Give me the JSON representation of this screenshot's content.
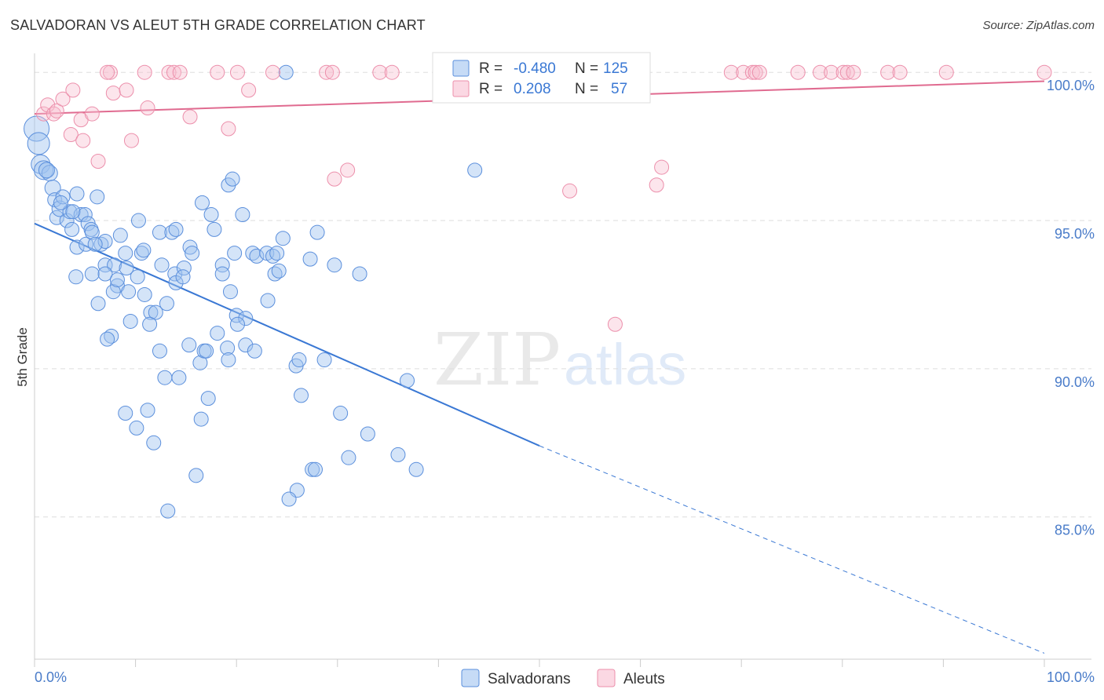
{
  "title": "SALVADORAN VS ALEUT 5TH GRADE CORRELATION CHART",
  "source": "Source: ZipAtlas.com",
  "watermark": {
    "zip": "ZIP",
    "atlas": "atlas"
  },
  "colors": {
    "blue": "#5b8fdc",
    "blue_fill": "rgba(160,195,240,0.45)",
    "blue_line": "#3a78d4",
    "pink": "#ec8fab",
    "pink_fill": "rgba(248,190,208,0.40)",
    "pink_line": "#e06b90",
    "tick_text": "#4a7cc9",
    "grid": "#dddddd"
  },
  "legend": {
    "rows": [
      {
        "r_label": "R =",
        "r_value": "-0.480",
        "n_label": "N =",
        "n_value": "125",
        "series": "Salvadorans"
      },
      {
        "r_label": "R =",
        "r_value": "0.208",
        "n_label": "N =",
        "n_value": "57",
        "series": "Aleuts"
      }
    ]
  },
  "chart_data": {
    "type": "scatter",
    "title": "SALVADORAN VS ALEUT 5TH GRADE CORRELATION CHART",
    "xlabel": "",
    "ylabel": "5th Grade",
    "xlim": [
      0,
      100
    ],
    "ylim": [
      80.2,
      100.8
    ],
    "x_tick_labels": [
      "0.0%",
      "100.0%"
    ],
    "y_ticks": [
      85,
      90,
      95,
      100
    ],
    "y_tick_labels": [
      "85.0%",
      "90.0%",
      "95.0%",
      "100.0%"
    ],
    "legend_placement": "bottom-center",
    "series": [
      {
        "name": "Salvadorans",
        "trend": {
          "x0": 0,
          "y0": 94.9,
          "x1": 50,
          "y1": 87.4,
          "dashed_to_x": 100,
          "dashed_to_y": 80.4
        },
        "points": [
          {
            "x": 0.2,
            "y": 98.1,
            "s": 16
          },
          {
            "x": 0.4,
            "y": 97.6,
            "s": 14
          },
          {
            "x": 0.6,
            "y": 96.9,
            "s": 12
          },
          {
            "x": 0.9,
            "y": 96.7,
            "s": 12
          },
          {
            "x": 1.5,
            "y": 96.6,
            "s": 10
          },
          {
            "x": 1.8,
            "y": 96.1,
            "s": 10
          },
          {
            "x": 2.0,
            "y": 95.7,
            "s": 9
          },
          {
            "x": 2.2,
            "y": 95.1,
            "s": 9
          },
          {
            "x": 2.5,
            "y": 95.4,
            "s": 10
          },
          {
            "x": 2.8,
            "y": 95.8,
            "s": 9
          },
          {
            "x": 3.2,
            "y": 95.0,
            "s": 9
          },
          {
            "x": 3.5,
            "y": 95.3,
            "s": 9
          },
          {
            "x": 3.7,
            "y": 94.7,
            "s": 9
          },
          {
            "x": 4.2,
            "y": 95.9,
            "s": 9
          },
          {
            "x": 4.6,
            "y": 95.2,
            "s": 9
          },
          {
            "x": 5.0,
            "y": 95.2,
            "s": 9
          },
          {
            "x": 5.3,
            "y": 94.9,
            "s": 9
          },
          {
            "x": 5.6,
            "y": 94.7,
            "s": 9
          },
          {
            "x": 6.2,
            "y": 95.8,
            "s": 9
          },
          {
            "x": 4.2,
            "y": 94.1,
            "s": 9
          },
          {
            "x": 5.1,
            "y": 94.2,
            "s": 9
          },
          {
            "x": 6.6,
            "y": 94.2,
            "s": 9
          },
          {
            "x": 7.0,
            "y": 94.3,
            "s": 9
          },
          {
            "x": 8.5,
            "y": 94.5,
            "s": 9
          },
          {
            "x": 9.0,
            "y": 93.9,
            "s": 9
          },
          {
            "x": 10.3,
            "y": 95.0,
            "s": 9
          },
          {
            "x": 10.6,
            "y": 93.9,
            "s": 9
          },
          {
            "x": 10.8,
            "y": 94.0,
            "s": 9
          },
          {
            "x": 12.4,
            "y": 94.6,
            "s": 9
          },
          {
            "x": 13.6,
            "y": 94.6,
            "s": 9
          },
          {
            "x": 14.0,
            "y": 94.7,
            "s": 9
          },
          {
            "x": 15.4,
            "y": 94.1,
            "s": 9
          },
          {
            "x": 15.6,
            "y": 93.9,
            "s": 9
          },
          {
            "x": 7.0,
            "y": 93.5,
            "s": 9
          },
          {
            "x": 7.9,
            "y": 93.5,
            "s": 9
          },
          {
            "x": 9.1,
            "y": 93.4,
            "s": 9
          },
          {
            "x": 5.7,
            "y": 93.2,
            "s": 9
          },
          {
            "x": 7.0,
            "y": 93.2,
            "s": 9
          },
          {
            "x": 10.2,
            "y": 93.1,
            "s": 9
          },
          {
            "x": 12.6,
            "y": 93.5,
            "s": 9
          },
          {
            "x": 13.9,
            "y": 93.2,
            "s": 9
          },
          {
            "x": 14.8,
            "y": 93.4,
            "s": 9
          },
          {
            "x": 4.1,
            "y": 93.1,
            "s": 9
          },
          {
            "x": 8.2,
            "y": 92.8,
            "s": 9
          },
          {
            "x": 14.0,
            "y": 92.9,
            "s": 9
          },
          {
            "x": 14.7,
            "y": 93.1,
            "s": 9
          },
          {
            "x": 7.8,
            "y": 92.6,
            "s": 9
          },
          {
            "x": 9.3,
            "y": 92.6,
            "s": 9
          },
          {
            "x": 10.9,
            "y": 92.5,
            "s": 9
          },
          {
            "x": 6.3,
            "y": 92.2,
            "s": 9
          },
          {
            "x": 13.1,
            "y": 92.2,
            "s": 9
          },
          {
            "x": 11.5,
            "y": 91.9,
            "s": 9
          },
          {
            "x": 12.0,
            "y": 91.9,
            "s": 9
          },
          {
            "x": 9.5,
            "y": 91.6,
            "s": 9
          },
          {
            "x": 11.4,
            "y": 91.5,
            "s": 9
          },
          {
            "x": 7.6,
            "y": 91.1,
            "s": 9
          },
          {
            "x": 7.2,
            "y": 91.0,
            "s": 9
          },
          {
            "x": 12.4,
            "y": 90.6,
            "s": 9
          },
          {
            "x": 15.3,
            "y": 90.8,
            "s": 9
          },
          {
            "x": 16.4,
            "y": 90.2,
            "s": 9
          },
          {
            "x": 16.8,
            "y": 90.6,
            "s": 9
          },
          {
            "x": 17.0,
            "y": 90.6,
            "s": 9
          },
          {
            "x": 18.1,
            "y": 91.2,
            "s": 9
          },
          {
            "x": 19.1,
            "y": 90.7,
            "s": 9
          },
          {
            "x": 19.2,
            "y": 90.3,
            "s": 9
          },
          {
            "x": 20.9,
            "y": 90.8,
            "s": 9
          },
          {
            "x": 21.8,
            "y": 90.6,
            "s": 9
          },
          {
            "x": 12.9,
            "y": 89.7,
            "s": 9
          },
          {
            "x": 14.3,
            "y": 89.7,
            "s": 9
          },
          {
            "x": 17.2,
            "y": 89.0,
            "s": 9
          },
          {
            "x": 9.0,
            "y": 88.5,
            "s": 9
          },
          {
            "x": 11.2,
            "y": 88.6,
            "s": 9
          },
          {
            "x": 10.1,
            "y": 88.0,
            "s": 9
          },
          {
            "x": 16.5,
            "y": 88.3,
            "s": 9
          },
          {
            "x": 11.8,
            "y": 87.5,
            "s": 9
          },
          {
            "x": 16.0,
            "y": 86.4,
            "s": 9
          },
          {
            "x": 13.2,
            "y": 85.2,
            "s": 9
          },
          {
            "x": 16.6,
            "y": 95.6,
            "s": 9
          },
          {
            "x": 17.5,
            "y": 95.2,
            "s": 9
          },
          {
            "x": 19.2,
            "y": 96.2,
            "s": 9
          },
          {
            "x": 19.6,
            "y": 96.4,
            "s": 9
          },
          {
            "x": 20.6,
            "y": 95.2,
            "s": 9
          },
          {
            "x": 17.8,
            "y": 94.7,
            "s": 9
          },
          {
            "x": 19.8,
            "y": 93.9,
            "s": 9
          },
          {
            "x": 21.6,
            "y": 93.9,
            "s": 9
          },
          {
            "x": 22.0,
            "y": 93.8,
            "s": 9
          },
          {
            "x": 23.0,
            "y": 93.9,
            "s": 9
          },
          {
            "x": 23.6,
            "y": 93.8,
            "s": 9
          },
          {
            "x": 24.0,
            "y": 93.9,
            "s": 9
          },
          {
            "x": 24.6,
            "y": 94.4,
            "s": 9
          },
          {
            "x": 18.6,
            "y": 93.5,
            "s": 9
          },
          {
            "x": 18.6,
            "y": 93.2,
            "s": 9
          },
          {
            "x": 23.8,
            "y": 93.2,
            "s": 9
          },
          {
            "x": 24.2,
            "y": 93.3,
            "s": 9
          },
          {
            "x": 27.3,
            "y": 93.7,
            "s": 9
          },
          {
            "x": 28.0,
            "y": 94.6,
            "s": 9
          },
          {
            "x": 29.7,
            "y": 93.5,
            "s": 9
          },
          {
            "x": 32.2,
            "y": 93.2,
            "s": 9
          },
          {
            "x": 19.4,
            "y": 92.6,
            "s": 9
          },
          {
            "x": 23.1,
            "y": 92.3,
            "s": 9
          },
          {
            "x": 20.0,
            "y": 91.8,
            "s": 9
          },
          {
            "x": 20.9,
            "y": 91.7,
            "s": 9
          },
          {
            "x": 20.1,
            "y": 91.5,
            "s": 9
          },
          {
            "x": 25.9,
            "y": 90.1,
            "s": 9
          },
          {
            "x": 26.2,
            "y": 90.3,
            "s": 9
          },
          {
            "x": 28.7,
            "y": 90.3,
            "s": 9
          },
          {
            "x": 26.4,
            "y": 89.1,
            "s": 9
          },
          {
            "x": 30.3,
            "y": 88.5,
            "s": 9
          },
          {
            "x": 33.0,
            "y": 87.8,
            "s": 9
          },
          {
            "x": 31.1,
            "y": 87.0,
            "s": 9
          },
          {
            "x": 36.0,
            "y": 87.1,
            "s": 9
          },
          {
            "x": 27.5,
            "y": 86.6,
            "s": 9
          },
          {
            "x": 27.8,
            "y": 86.6,
            "s": 9
          },
          {
            "x": 37.8,
            "y": 86.6,
            "s": 9
          },
          {
            "x": 26.0,
            "y": 85.9,
            "s": 9
          },
          {
            "x": 25.2,
            "y": 85.6,
            "s": 9
          },
          {
            "x": 36.9,
            "y": 89.6,
            "s": 9
          },
          {
            "x": 43.6,
            "y": 96.7,
            "s": 9
          },
          {
            "x": 24.9,
            "y": 100.0,
            "s": 9
          },
          {
            "x": 3.8,
            "y": 95.3,
            "s": 9
          },
          {
            "x": 2.6,
            "y": 95.6,
            "s": 9
          },
          {
            "x": 1.2,
            "y": 96.7,
            "s": 10
          },
          {
            "x": 5.7,
            "y": 94.6,
            "s": 9
          },
          {
            "x": 6.0,
            "y": 94.2,
            "s": 9
          },
          {
            "x": 8.2,
            "y": 93.0,
            "s": 9
          }
        ]
      },
      {
        "name": "Aleuts",
        "trend": {
          "x0": 0,
          "y0": 98.6,
          "x1": 100,
          "y1": 99.7
        },
        "points": [
          {
            "x": 0.9,
            "y": 98.6,
            "s": 9
          },
          {
            "x": 1.3,
            "y": 98.9,
            "s": 9
          },
          {
            "x": 1.9,
            "y": 98.6,
            "s": 9
          },
          {
            "x": 2.2,
            "y": 98.7,
            "s": 9
          },
          {
            "x": 2.8,
            "y": 99.1,
            "s": 9
          },
          {
            "x": 3.6,
            "y": 97.9,
            "s": 9
          },
          {
            "x": 3.8,
            "y": 99.4,
            "s": 9
          },
          {
            "x": 4.6,
            "y": 98.4,
            "s": 9
          },
          {
            "x": 4.8,
            "y": 97.7,
            "s": 9
          },
          {
            "x": 5.7,
            "y": 98.6,
            "s": 9
          },
          {
            "x": 6.3,
            "y": 97.0,
            "s": 9
          },
          {
            "x": 7.5,
            "y": 100.0,
            "s": 9
          },
          {
            "x": 7.2,
            "y": 100.0,
            "s": 9
          },
          {
            "x": 7.8,
            "y": 99.3,
            "s": 9
          },
          {
            "x": 9.1,
            "y": 99.4,
            "s": 9
          },
          {
            "x": 9.6,
            "y": 97.7,
            "s": 9
          },
          {
            "x": 10.9,
            "y": 100.0,
            "s": 9
          },
          {
            "x": 11.2,
            "y": 98.8,
            "s": 9
          },
          {
            "x": 13.3,
            "y": 100.0,
            "s": 9
          },
          {
            "x": 13.8,
            "y": 100.0,
            "s": 9
          },
          {
            "x": 14.4,
            "y": 100.0,
            "s": 9
          },
          {
            "x": 15.4,
            "y": 98.5,
            "s": 9
          },
          {
            "x": 18.1,
            "y": 100.0,
            "s": 9
          },
          {
            "x": 19.2,
            "y": 98.1,
            "s": 9
          },
          {
            "x": 20.1,
            "y": 100.0,
            "s": 9
          },
          {
            "x": 21.2,
            "y": 99.4,
            "s": 9
          },
          {
            "x": 23.6,
            "y": 100.0,
            "s": 9
          },
          {
            "x": 28.9,
            "y": 100.0,
            "s": 9
          },
          {
            "x": 29.5,
            "y": 100.0,
            "s": 9
          },
          {
            "x": 29.7,
            "y": 96.4,
            "s": 9
          },
          {
            "x": 31.0,
            "y": 96.7,
            "s": 9
          },
          {
            "x": 34.2,
            "y": 100.0,
            "s": 9
          },
          {
            "x": 35.4,
            "y": 100.0,
            "s": 9
          },
          {
            "x": 47.3,
            "y": 100.0,
            "s": 9
          },
          {
            "x": 50.2,
            "y": 100.0,
            "s": 9
          },
          {
            "x": 53.0,
            "y": 96.0,
            "s": 9
          },
          {
            "x": 55.6,
            "y": 100.0,
            "s": 9
          },
          {
            "x": 57.0,
            "y": 100.0,
            "s": 9
          },
          {
            "x": 57.5,
            "y": 91.5,
            "s": 9
          },
          {
            "x": 60.0,
            "y": 100.0,
            "s": 9
          },
          {
            "x": 61.6,
            "y": 96.2,
            "s": 9
          },
          {
            "x": 62.1,
            "y": 96.8,
            "s": 9
          },
          {
            "x": 69.0,
            "y": 100.0,
            "s": 9
          },
          {
            "x": 70.2,
            "y": 100.0,
            "s": 9
          },
          {
            "x": 71.1,
            "y": 100.0,
            "s": 9
          },
          {
            "x": 71.4,
            "y": 100.0,
            "s": 9
          },
          {
            "x": 71.8,
            "y": 100.0,
            "s": 9
          },
          {
            "x": 75.6,
            "y": 100.0,
            "s": 9
          },
          {
            "x": 77.8,
            "y": 100.0,
            "s": 9
          },
          {
            "x": 78.9,
            "y": 100.0,
            "s": 9
          },
          {
            "x": 80.1,
            "y": 100.0,
            "s": 9
          },
          {
            "x": 80.5,
            "y": 100.0,
            "s": 9
          },
          {
            "x": 81.1,
            "y": 100.0,
            "s": 9
          },
          {
            "x": 84.5,
            "y": 100.0,
            "s": 9
          },
          {
            "x": 85.7,
            "y": 100.0,
            "s": 9
          },
          {
            "x": 90.3,
            "y": 100.0,
            "s": 9
          },
          {
            "x": 100.0,
            "y": 100.0,
            "s": 9
          }
        ]
      }
    ]
  }
}
